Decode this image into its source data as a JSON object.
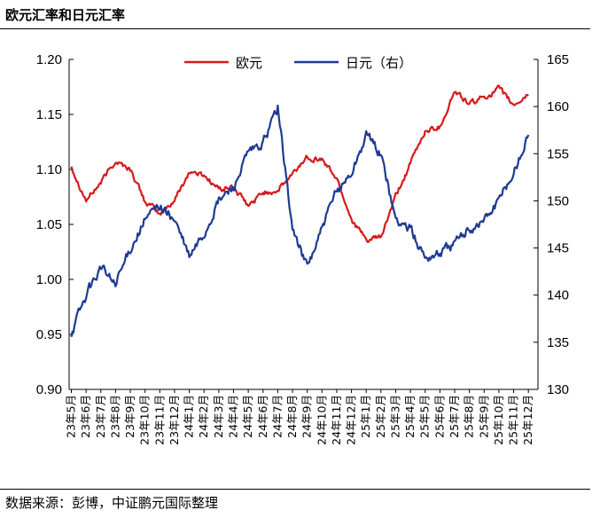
{
  "header": {
    "title": "欧元汇率和日元汇率"
  },
  "footer": {
    "source": "数据来源：彭博，中证鹏元国际整理"
  },
  "chart_data": {
    "type": "line",
    "title": "欧元汇率和日元汇率",
    "xlabel": "",
    "ylabel": "",
    "ylim": [
      0.9,
      1.2
    ],
    "y2lim": [
      130,
      165
    ],
    "left_ticks": [
      "1.20",
      "1.15",
      "1.10",
      "1.05",
      "1.00",
      "0.95",
      "0.90"
    ],
    "right_ticks": [
      "165",
      "160",
      "155",
      "150",
      "145",
      "140",
      "135",
      "130"
    ],
    "categories": [
      "23年5月",
      "23年6月",
      "23年7月",
      "23年8月",
      "23年9月",
      "23年10月",
      "23年11月",
      "23年12月",
      "24年1月",
      "24年2月",
      "24年3月",
      "24年4月",
      "24年5月",
      "24年6月",
      "24年7月",
      "24年8月",
      "24年9月",
      "24年10月",
      "24年11月",
      "24年12月",
      "25年1月",
      "25年2月",
      "25年3月",
      "25年4月",
      "25年5月",
      "25年6月",
      "25年7月",
      "25年8月",
      "25年9月",
      "25年10月",
      "25年11月",
      "25年12月"
    ],
    "legend_position": "top-center",
    "series": [
      {
        "name": "欧元",
        "axis": "left",
        "color": "#d7191c",
        "values": [
          1.103,
          1.072,
          1.088,
          1.108,
          1.1,
          1.071,
          1.059,
          1.072,
          1.098,
          1.095,
          1.082,
          1.084,
          1.066,
          1.079,
          1.081,
          1.095,
          1.112,
          1.109,
          1.092,
          1.055,
          1.035,
          1.038,
          1.075,
          1.105,
          1.135,
          1.139,
          1.171,
          1.159,
          1.166,
          1.173,
          1.158,
          1.168
        ]
      },
      {
        "name": "日元（右）",
        "axis": "right",
        "color": "#1f3a93",
        "values": [
          136,
          140,
          143,
          141,
          145,
          148,
          149.5,
          148,
          144,
          146.5,
          150,
          151.5,
          155,
          156,
          160,
          147,
          143,
          147,
          151,
          153,
          157,
          155,
          148,
          147,
          144,
          144.5,
          145.5,
          147,
          148,
          150,
          153,
          157
        ]
      }
    ]
  }
}
